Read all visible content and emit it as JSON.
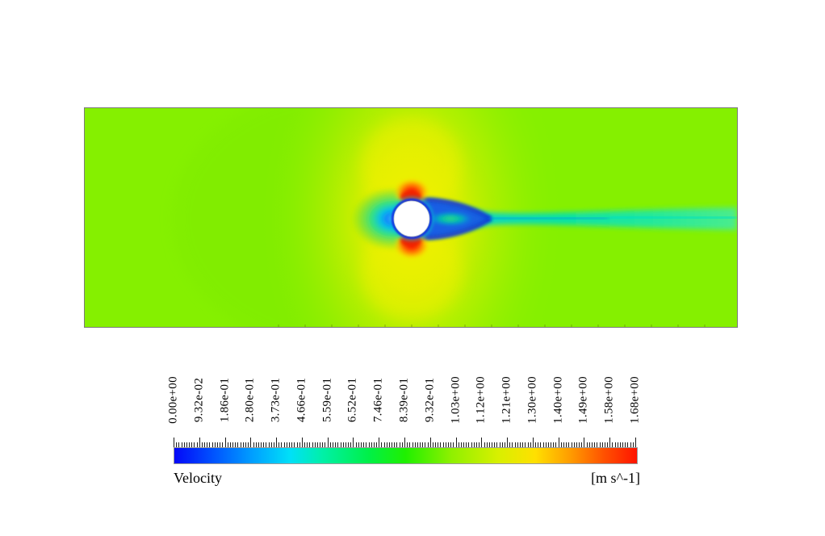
{
  "render_view": {
    "description": "2D pseudocolor contour of velocity magnitude for flow past a circular cylinder; white cylinder near left-center, red high-speed lobes above/below it, blue recirculating wake trailing into a cyan streak to the outlet",
    "border_color": "#7a7a7a",
    "cylinder_fill": "#ffffff",
    "field_colors": {
      "freestream_green": "#85f000",
      "acceleration_yellow": "#f2f000",
      "high_speed_red": "#ff1a00",
      "shear_layer_blue": "#1230dd",
      "wake_cyan": "#00ddbb",
      "stagnation_blue": "#1080ff"
    }
  },
  "chart_data": {
    "type": "heatmap",
    "title": "Velocity",
    "units_label": "[m s^-1]",
    "field": "velocity magnitude",
    "range": [
      0.0,
      1.68
    ],
    "colormap": "rainbow/jet (blue - cyan - green - yellow - orange - red)",
    "legend_position": "horizontal bar below plot, tick labels rotated 90deg",
    "colorbar_tick_labels": [
      "0.00e+00",
      "9.32e-02",
      "1.86e-01",
      "2.80e-01",
      "3.73e-01",
      "4.66e-01",
      "5.59e-01",
      "6.52e-01",
      "7.46e-01",
      "8.39e-01",
      "9.32e-01",
      "1.03e+00",
      "1.12e+00",
      "1.21e+00",
      "1.30e+00",
      "1.40e+00",
      "1.49e+00",
      "1.58e+00",
      "1.68e+00"
    ],
    "colorbar_gradient": [
      {
        "pos": 0.0,
        "color": "#0408f8"
      },
      {
        "pos": 0.09,
        "color": "#0058ff"
      },
      {
        "pos": 0.17,
        "color": "#00a0ff"
      },
      {
        "pos": 0.25,
        "color": "#00e0f8"
      },
      {
        "pos": 0.32,
        "color": "#00f0a8"
      },
      {
        "pos": 0.42,
        "color": "#00f048"
      },
      {
        "pos": 0.5,
        "color": "#20f000"
      },
      {
        "pos": 0.6,
        "color": "#90f000"
      },
      {
        "pos": 0.7,
        "color": "#d8f000"
      },
      {
        "pos": 0.78,
        "color": "#ffe000"
      },
      {
        "pos": 0.86,
        "color": "#ff9800"
      },
      {
        "pos": 0.93,
        "color": "#ff5000"
      },
      {
        "pos": 1.0,
        "color": "#ff1400"
      }
    ],
    "flow_features": [
      {
        "name": "free stream",
        "approx_value": 1.0,
        "color": "green"
      },
      {
        "name": "front stagnation point",
        "approx_value": 0.0,
        "color": "blue"
      },
      {
        "name": "cylinder shoulders (max speed)",
        "approx_value": 1.68,
        "color": "red"
      },
      {
        "name": "recirculating wake behind cylinder",
        "approx_value": 0.2,
        "color": "dark blue with cyan-green core"
      },
      {
        "name": "far wake streak to outlet",
        "approx_value": 0.75,
        "color": "cyan"
      }
    ]
  }
}
